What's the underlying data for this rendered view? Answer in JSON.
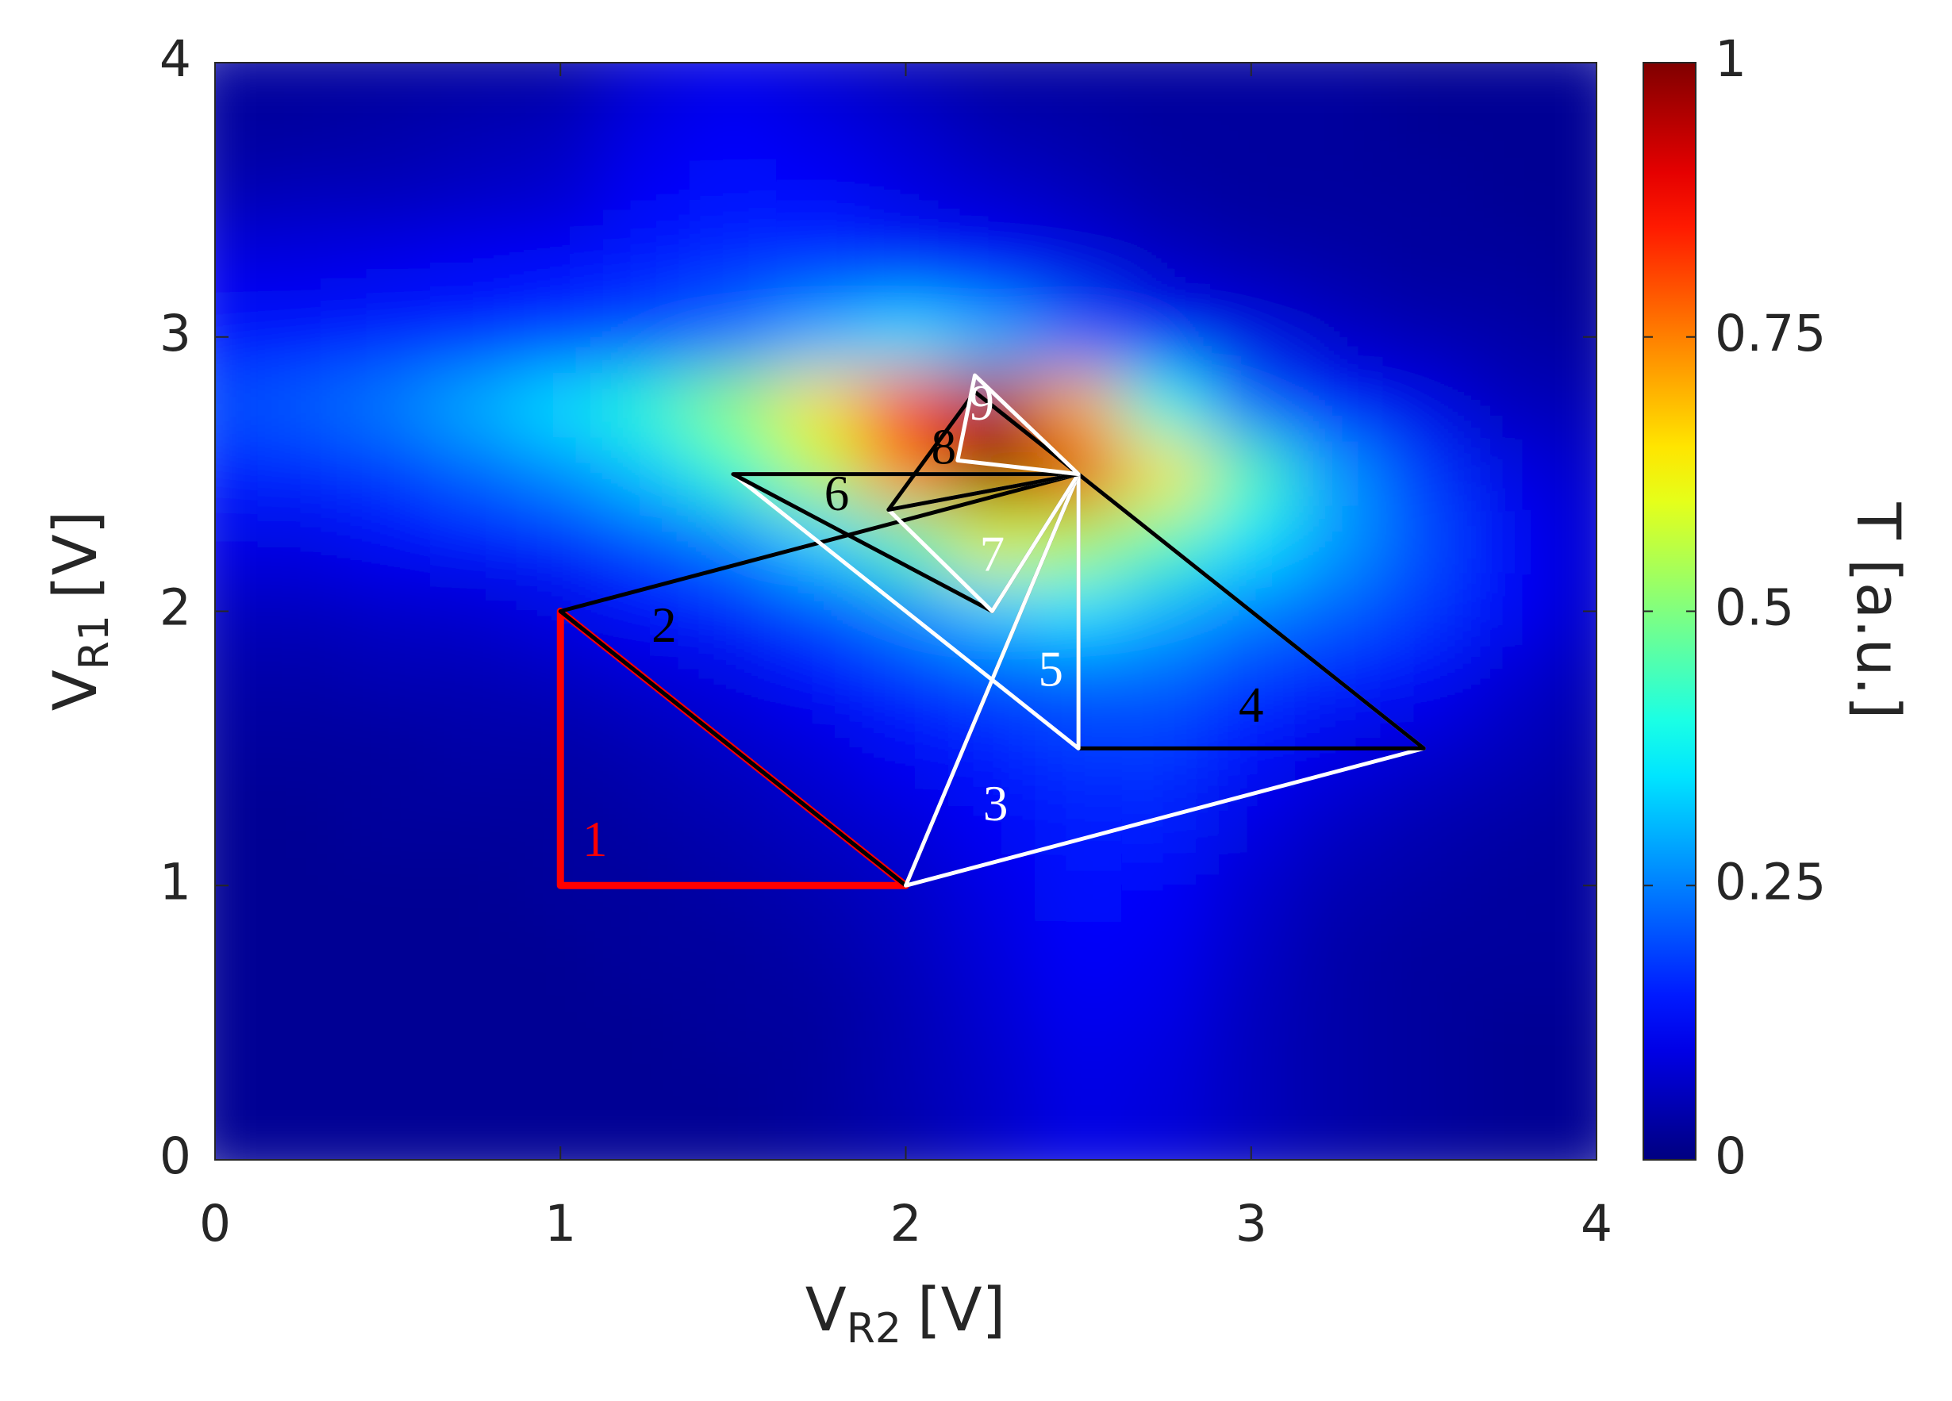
{
  "chart_data": {
    "type": "contour",
    "x_label": {
      "text": "V",
      "subscript": "R2",
      "unit": "[V]"
    },
    "y_label": {
      "text": "V",
      "subscript": "R1",
      "unit": "[V]"
    },
    "colorbar_label": "T [a.u.]",
    "colormap": "jet",
    "xlim": [
      0,
      4
    ],
    "ylim": [
      0,
      4
    ],
    "xticks": [
      0,
      1,
      2,
      3,
      4
    ],
    "yticks": [
      0,
      1,
      2,
      3,
      4
    ],
    "clim": [
      0,
      1
    ],
    "cticks": [
      0,
      0.25,
      0.5,
      0.75,
      1
    ],
    "grid_x": [
      0,
      0.25,
      0.5,
      0.75,
      1,
      1.25,
      1.5,
      1.75,
      2,
      2.25,
      2.5,
      2.75,
      3,
      3.25,
      3.5,
      3.75,
      4
    ],
    "grid_y": [
      4,
      3.75,
      3.5,
      3.25,
      3,
      2.75,
      2.5,
      2.25,
      2,
      1.75,
      1.5,
      1.25,
      1,
      0.75,
      0.5,
      0.25,
      0
    ],
    "z": [
      [
        0.03,
        0.03,
        0.03,
        0.03,
        0.03,
        0.08,
        0.1,
        0.08,
        0.05,
        0.03,
        0.03,
        0.03,
        0.03,
        0.03,
        0.02,
        0.02,
        0.02
      ],
      [
        0.03,
        0.03,
        0.04,
        0.05,
        0.06,
        0.1,
        0.12,
        0.1,
        0.08,
        0.05,
        0.04,
        0.03,
        0.03,
        0.03,
        0.02,
        0.02,
        0.02
      ],
      [
        0.05,
        0.06,
        0.06,
        0.07,
        0.08,
        0.12,
        0.14,
        0.13,
        0.1,
        0.08,
        0.06,
        0.04,
        0.03,
        0.03,
        0.03,
        0.02,
        0.02
      ],
      [
        0.1,
        0.1,
        0.11,
        0.12,
        0.13,
        0.15,
        0.17,
        0.18,
        0.16,
        0.13,
        0.1,
        0.07,
        0.05,
        0.04,
        0.03,
        0.03,
        0.02
      ],
      [
        0.14,
        0.14,
        0.15,
        0.16,
        0.18,
        0.2,
        0.24,
        0.3,
        0.35,
        0.3,
        0.22,
        0.14,
        0.1,
        0.07,
        0.05,
        0.04,
        0.03
      ],
      [
        0.2,
        0.22,
        0.25,
        0.3,
        0.35,
        0.42,
        0.52,
        0.65,
        0.85,
        0.95,
        0.7,
        0.4,
        0.22,
        0.14,
        0.1,
        0.06,
        0.05
      ],
      [
        0.15,
        0.16,
        0.18,
        0.22,
        0.26,
        0.32,
        0.42,
        0.55,
        0.75,
        1.0,
        0.9,
        0.65,
        0.45,
        0.28,
        0.18,
        0.1,
        0.07
      ],
      [
        0.1,
        0.1,
        0.12,
        0.14,
        0.16,
        0.2,
        0.25,
        0.33,
        0.45,
        0.6,
        0.55,
        0.45,
        0.35,
        0.28,
        0.2,
        0.12,
        0.08
      ],
      [
        0.06,
        0.06,
        0.07,
        0.08,
        0.1,
        0.13,
        0.16,
        0.2,
        0.26,
        0.32,
        0.35,
        0.3,
        0.25,
        0.22,
        0.18,
        0.12,
        0.07
      ],
      [
        0.04,
        0.04,
        0.05,
        0.05,
        0.06,
        0.08,
        0.1,
        0.13,
        0.17,
        0.2,
        0.22,
        0.22,
        0.18,
        0.15,
        0.12,
        0.08,
        0.05
      ],
      [
        0.03,
        0.03,
        0.03,
        0.04,
        0.04,
        0.05,
        0.07,
        0.09,
        0.12,
        0.15,
        0.18,
        0.18,
        0.14,
        0.1,
        0.08,
        0.06,
        0.04
      ],
      [
        0.02,
        0.02,
        0.03,
        0.03,
        0.03,
        0.04,
        0.05,
        0.07,
        0.09,
        0.12,
        0.15,
        0.16,
        0.1,
        0.07,
        0.05,
        0.04,
        0.03
      ],
      [
        0.02,
        0.02,
        0.02,
        0.02,
        0.03,
        0.03,
        0.04,
        0.05,
        0.07,
        0.1,
        0.14,
        0.12,
        0.08,
        0.05,
        0.04,
        0.03,
        0.03
      ],
      [
        0.02,
        0.02,
        0.02,
        0.02,
        0.02,
        0.03,
        0.03,
        0.04,
        0.06,
        0.09,
        0.12,
        0.11,
        0.07,
        0.04,
        0.03,
        0.03,
        0.03
      ],
      [
        0.02,
        0.02,
        0.02,
        0.02,
        0.02,
        0.02,
        0.03,
        0.03,
        0.05,
        0.08,
        0.11,
        0.1,
        0.06,
        0.04,
        0.03,
        0.02,
        0.02
      ],
      [
        0.02,
        0.02,
        0.02,
        0.02,
        0.02,
        0.02,
        0.02,
        0.03,
        0.05,
        0.07,
        0.1,
        0.09,
        0.06,
        0.04,
        0.03,
        0.02,
        0.02
      ],
      [
        0.02,
        0.02,
        0.02,
        0.02,
        0.02,
        0.02,
        0.02,
        0.03,
        0.04,
        0.07,
        0.1,
        0.09,
        0.06,
        0.04,
        0.03,
        0.02,
        0.02
      ]
    ],
    "simplices": [
      {
        "label": "1",
        "color": "#ff0000",
        "x": [
          1,
          1,
          2
        ],
        "y": [
          1,
          2,
          1
        ],
        "label_x": 1.1,
        "label_y": 1.15
      },
      {
        "label": "2",
        "color": "#000000",
        "x": [
          1,
          2,
          2.5
        ],
        "y": [
          2,
          1,
          2.5
        ],
        "label_x": 1.3,
        "label_y": 1.93
      },
      {
        "label": "3",
        "color": "#ffffff",
        "x": [
          2,
          3.5,
          2.5
        ],
        "y": [
          1,
          1.5,
          2.5
        ],
        "label_x": 2.26,
        "label_y": 1.28
      },
      {
        "label": "4",
        "color": "#000000",
        "x": [
          2.5,
          3.5,
          2.5
        ],
        "y": [
          1.5,
          1.5,
          2.5
        ],
        "label_x": 3,
        "label_y": 1.64
      },
      {
        "label": "5",
        "color": "#ffffff",
        "x": [
          2.5,
          1.5,
          2.5
        ],
        "y": [
          1.5,
          2.5,
          2.5
        ],
        "label_x": 2.42,
        "label_y": 1.77
      },
      {
        "label": "6",
        "color": "#000000",
        "x": [
          1.5,
          2.5,
          2.25
        ],
        "y": [
          2.5,
          2.5,
          2
        ],
        "label_x": 1.8,
        "label_y": 2.41
      },
      {
        "label": "7",
        "color": "#ffffff",
        "x": [
          1.95,
          2.25,
          2.5
        ],
        "y": [
          2.37,
          2,
          2.5
        ],
        "label_x": 2.25,
        "label_y": 2.19
      },
      {
        "label": "8",
        "color": "#000000",
        "x": [
          1.95,
          2.2,
          2.5
        ],
        "y": [
          2.37,
          2.8,
          2.5
        ],
        "label_x": 2.11,
        "label_y": 2.58
      },
      {
        "label": "9",
        "color": "#ffffff",
        "x": [
          2.2,
          2.5,
          2.15
        ],
        "y": [
          2.86,
          2.5,
          2.55
        ],
        "label_x": 2.22,
        "label_y": 2.74
      }
    ]
  }
}
